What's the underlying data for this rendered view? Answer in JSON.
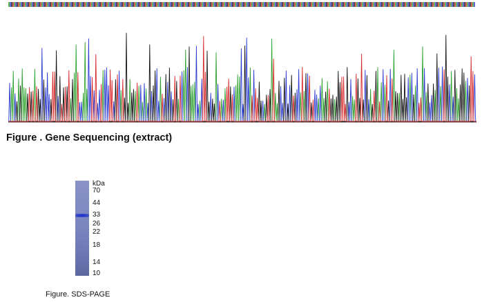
{
  "figure1": {
    "caption": "Figure . Gene Sequencing (extract)",
    "trace_colors": {
      "A": "#2ca02c",
      "C": "#2a3ad0",
      "G": "#111111",
      "T": "#d62728"
    }
  },
  "figure2": {
    "caption": "Figure. SDS-PAGE",
    "unit": "kDa",
    "markers": [
      "70",
      "44",
      "33",
      "26",
      "22",
      "18",
      "14",
      "10"
    ],
    "band_color": "#1f2fd0",
    "lane_color": "#7c86bf"
  }
}
